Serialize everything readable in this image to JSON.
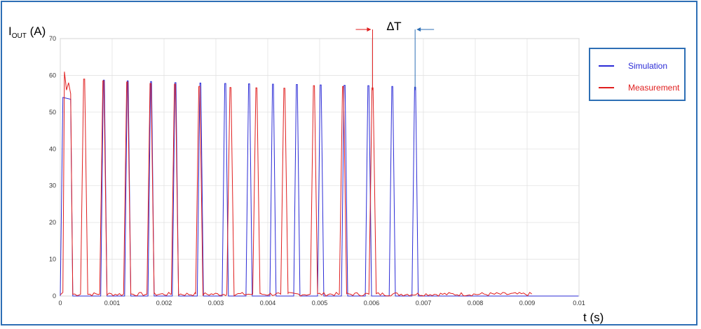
{
  "chart_data": {
    "type": "line",
    "title": "",
    "ylabel_main": "I",
    "ylabel_sub": "OUT",
    "ylabel_unit": " (A)",
    "xlabel": "t (s)",
    "xlim": [
      0,
      0.01
    ],
    "ylim": [
      0,
      70
    ],
    "grid": true,
    "legend_position": "right",
    "x_ticks": [
      "0",
      "0.001",
      "0.002",
      "0.003",
      "0.004",
      "0.005",
      "0.006",
      "0.007",
      "0.008",
      "0.009",
      "0.01"
    ],
    "y_ticks": [
      "0",
      "10",
      "20",
      "30",
      "40",
      "50",
      "60",
      "70"
    ],
    "annotation": "ΔT",
    "annotation_markers": {
      "measurement_x": 0.00602,
      "simulation_x": 0.00684
    },
    "series": [
      {
        "name": "Simulation",
        "color": "#2b2bd6",
        "initial_plateau": {
          "x_start": 5e-05,
          "x_end": 0.0002,
          "value": 54
        },
        "pulse_times": [
          0.00084,
          0.0013,
          0.00175,
          0.00222,
          0.0027,
          0.00318,
          0.00364,
          0.0041,
          0.00456,
          0.00502,
          0.00548,
          0.00594,
          0.0064,
          0.00684
        ],
        "pulse_peaks": [
          58.7,
          58.5,
          58.3,
          58.0,
          57.9,
          57.8,
          57.7,
          57.6,
          57.5,
          57.4,
          57.3,
          57.2,
          57.0,
          56.8
        ],
        "baseline": 0,
        "end_x": 0.0091
      },
      {
        "name": "Measurement",
        "color": "#e01e1e",
        "initial_peaks": [
          {
            "x": 0.0001,
            "value": 61
          },
          {
            "x": 0.00016,
            "value": 58
          }
        ],
        "pulse_times": [
          0.00046,
          0.00083,
          0.00129,
          0.00174,
          0.00221,
          0.00268,
          0.00328,
          0.00378,
          0.00432,
          0.00489,
          0.00545,
          0.00602
        ],
        "pulse_peaks": [
          59.0,
          58.5,
          58.2,
          57.8,
          57.6,
          57.0,
          56.7,
          56.6,
          56.5,
          57.2,
          57.0,
          56.6
        ],
        "baseline": 0.5,
        "end_x": 0.0091
      }
    ]
  }
}
